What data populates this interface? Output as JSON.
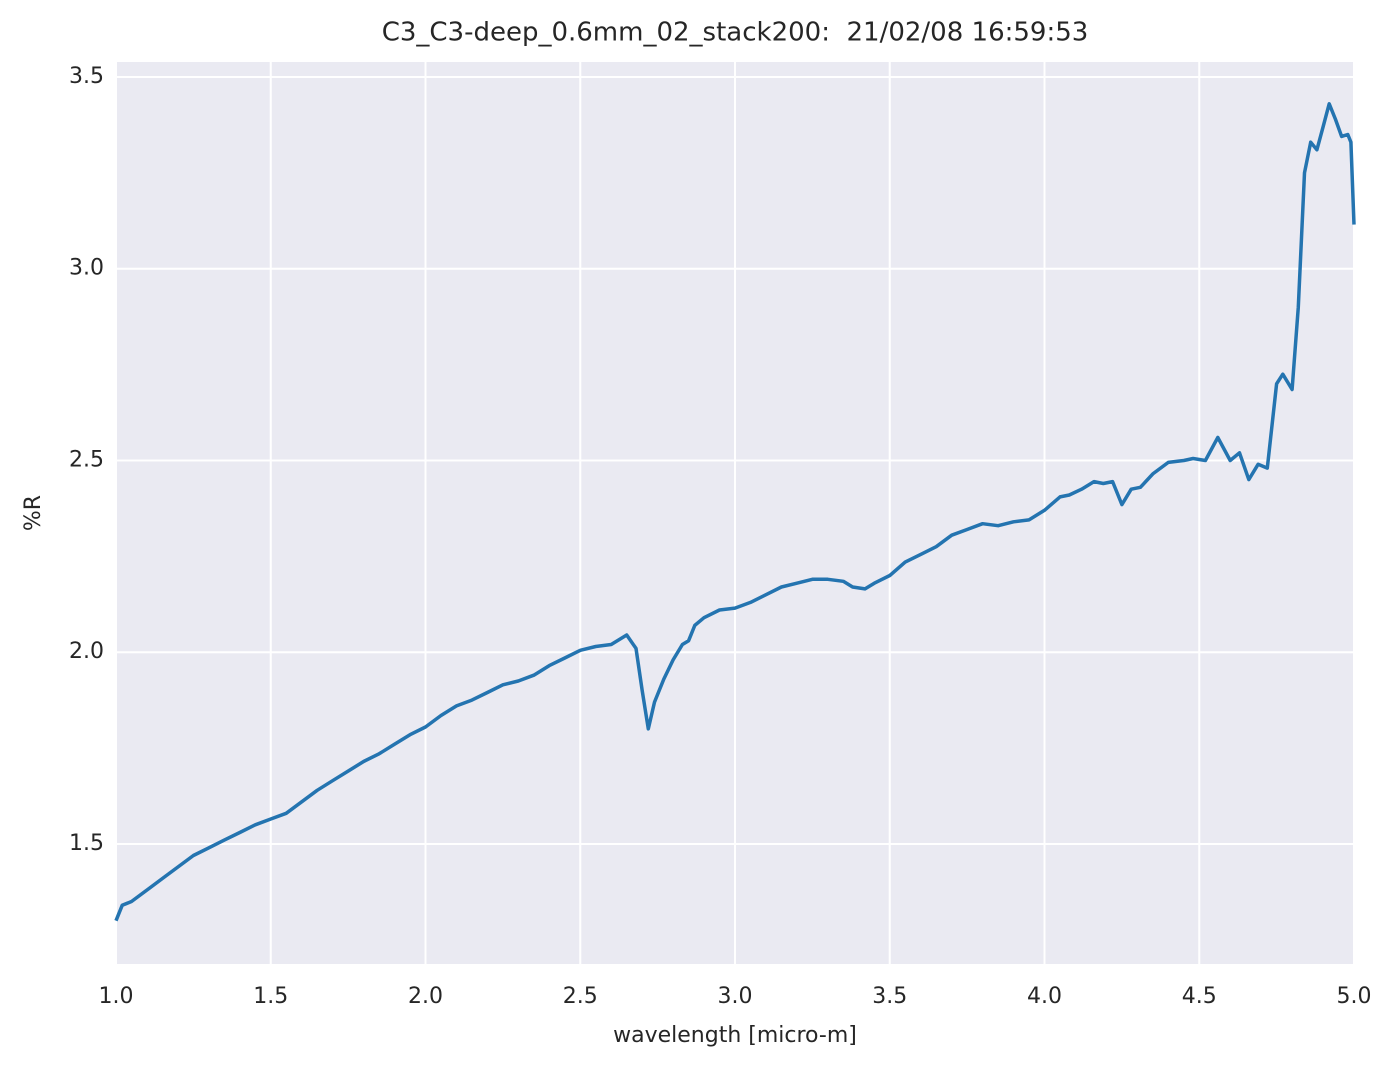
{
  "chart_data": {
    "type": "line",
    "title": "C3_C3-deep_0.6mm_02_stack200:  21/02/08 16:59:53",
    "xlabel": "wavelength [micro-m]",
    "ylabel": "%R",
    "xlim": [
      1.0,
      5.0
    ],
    "ylim": [
      1.187,
      3.539
    ],
    "xticks": [
      {
        "value": 1.0,
        "label": "1.0"
      },
      1.5,
      {
        "value": 2.0,
        "label": "2.0"
      },
      2.5,
      {
        "value": 3.0,
        "label": "3.0"
      },
      3.5,
      {
        "value": 4.0,
        "label": "4.0"
      },
      4.5,
      {
        "value": 5.0,
        "label": "5.0"
      }
    ],
    "yticks": [
      1.5,
      {
        "value": 2.0,
        "label": "2.0"
      },
      2.5,
      {
        "value": 3.0,
        "label": "3.0"
      },
      3.5
    ],
    "grid": true,
    "background": "#eaeaf2",
    "series": [
      {
        "color": "#2474b0",
        "x": [
          1.0,
          1.02,
          1.05,
          1.1,
          1.15,
          1.2,
          1.25,
          1.3,
          1.35,
          1.4,
          1.45,
          1.5,
          1.55,
          1.6,
          1.65,
          1.7,
          1.75,
          1.8,
          1.85,
          1.9,
          1.95,
          2.0,
          2.05,
          2.1,
          2.15,
          2.2,
          2.25,
          2.3,
          2.35,
          2.4,
          2.45,
          2.5,
          2.55,
          2.6,
          2.65,
          2.68,
          2.7,
          2.72,
          2.74,
          2.77,
          2.8,
          2.83,
          2.85,
          2.87,
          2.9,
          2.95,
          3.0,
          3.05,
          3.1,
          3.15,
          3.2,
          3.25,
          3.3,
          3.35,
          3.38,
          3.42,
          3.45,
          3.5,
          3.55,
          3.6,
          3.65,
          3.7,
          3.75,
          3.8,
          3.85,
          3.9,
          3.95,
          4.0,
          4.05,
          4.08,
          4.12,
          4.16,
          4.19,
          4.22,
          4.25,
          4.28,
          4.31,
          4.35,
          4.4,
          4.45,
          4.48,
          4.52,
          4.56,
          4.6,
          4.63,
          4.66,
          4.69,
          4.72,
          4.75,
          4.77,
          4.8,
          4.82,
          4.84,
          4.86,
          4.88,
          4.9,
          4.92,
          4.94,
          4.96,
          4.98,
          4.99,
          5.0
        ],
        "values": [
          1.3,
          1.34,
          1.35,
          1.38,
          1.41,
          1.44,
          1.47,
          1.49,
          1.51,
          1.53,
          1.55,
          1.565,
          1.58,
          1.61,
          1.64,
          1.665,
          1.69,
          1.715,
          1.735,
          1.76,
          1.785,
          1.805,
          1.835,
          1.86,
          1.875,
          1.895,
          1.915,
          1.925,
          1.94,
          1.965,
          1.985,
          2.005,
          2.015,
          2.02,
          2.045,
          2.01,
          1.9,
          1.8,
          1.87,
          1.93,
          1.98,
          2.02,
          2.03,
          2.07,
          2.09,
          2.11,
          2.115,
          2.13,
          2.15,
          2.17,
          2.18,
          2.19,
          2.19,
          2.185,
          2.17,
          2.165,
          2.18,
          2.2,
          2.235,
          2.255,
          2.275,
          2.305,
          2.32,
          2.335,
          2.33,
          2.34,
          2.345,
          2.37,
          2.405,
          2.41,
          2.425,
          2.445,
          2.44,
          2.445,
          2.385,
          2.425,
          2.43,
          2.465,
          2.495,
          2.5,
          2.505,
          2.5,
          2.56,
          2.5,
          2.52,
          2.45,
          2.49,
          2.48,
          2.7,
          2.725,
          2.685,
          2.9,
          3.25,
          3.33,
          3.31,
          3.37,
          3.43,
          3.39,
          3.345,
          3.35,
          3.33,
          3.115
        ]
      }
    ]
  }
}
